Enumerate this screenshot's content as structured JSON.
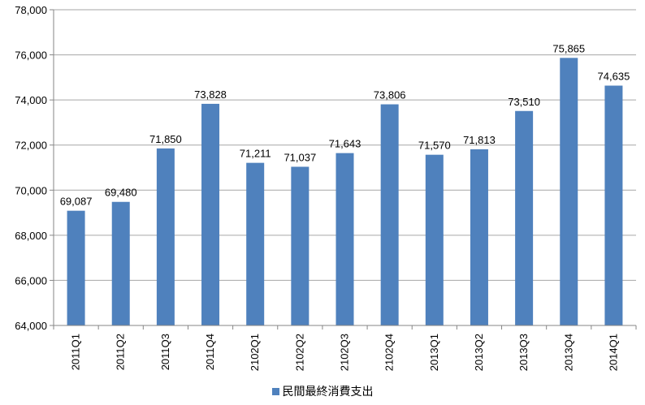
{
  "colors": {
    "bar": "#4F81BD",
    "grid": "#A6A6A6",
    "axis": "#868686"
  },
  "chart_data": {
    "type": "bar",
    "title": "",
    "xlabel": "",
    "ylabel": "",
    "ylim": [
      64000,
      78000
    ],
    "yticks": [
      64000,
      66000,
      68000,
      70000,
      72000,
      74000,
      76000,
      78000
    ],
    "ytick_labels": [
      "64,000",
      "66,000",
      "68,000",
      "70,000",
      "72,000",
      "74,000",
      "76,000",
      "78,000"
    ],
    "grid": true,
    "legend_position": "bottom",
    "categories": [
      "2011Q1",
      "2011Q2",
      "2011Q3",
      "2011Q4",
      "2102Q1",
      "2102Q2",
      "2102Q3",
      "2102Q4",
      "2013Q1",
      "2013Q2",
      "2013Q3",
      "2013Q4",
      "2014Q1"
    ],
    "series": [
      {
        "name": "民間最終消費支出",
        "values": [
          69087,
          69480,
          71850,
          73828,
          71211,
          71037,
          71643,
          73806,
          71570,
          71813,
          73510,
          75865,
          74635
        ],
        "labels": [
          "69,087",
          "69,480",
          "71,850",
          "73,828",
          "71,211",
          "71,037",
          "71,643",
          "73,806",
          "71,570",
          "71,813",
          "73,510",
          "75,865",
          "74,635"
        ]
      }
    ]
  }
}
